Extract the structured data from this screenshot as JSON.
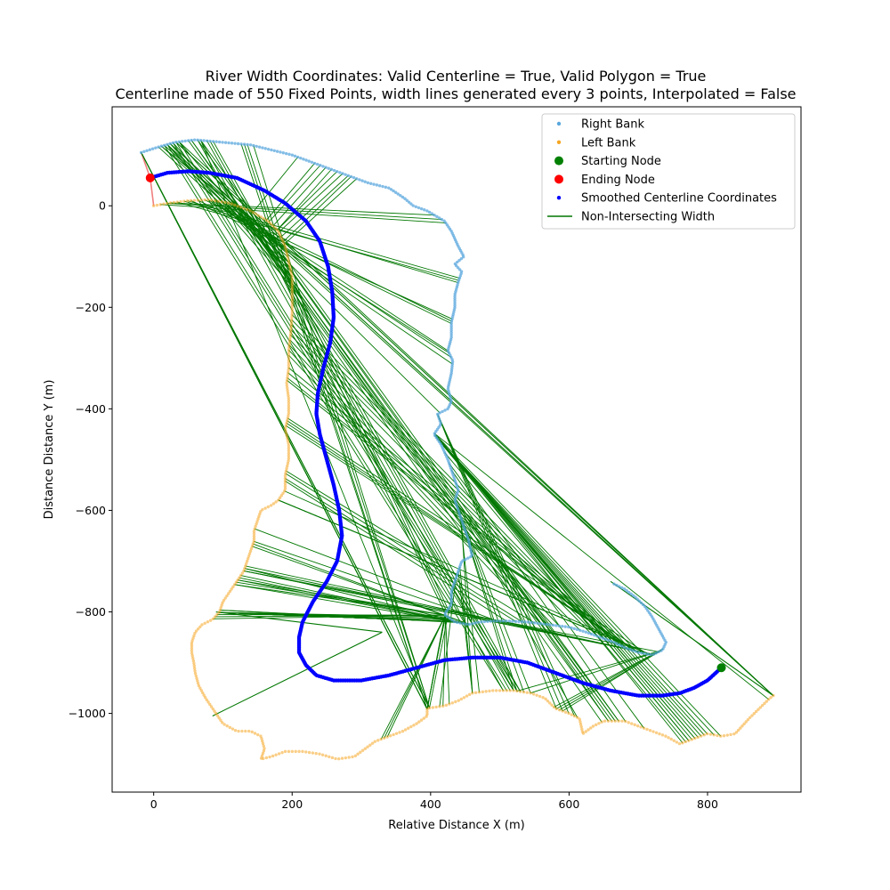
{
  "chart_data": {
    "type": "scatter",
    "title": "River Width Coordinates: Valid Centerline = True, Valid Polygon = True",
    "subtitle": "Centerline made of 550 Fixed Points, width lines generated every 3 points, Interpolated = False",
    "xlabel": "Relative Distance X (m)",
    "ylabel": "Distance Distance Y (m)",
    "xlim": [
      -60,
      935
    ],
    "ylim": [
      -1155,
      195
    ],
    "xticks": [
      0,
      200,
      400,
      600,
      800
    ],
    "yticks": [
      0,
      -200,
      -400,
      -600,
      -800,
      -1000
    ],
    "legend_position": "top-right",
    "colors": {
      "right_bank": "#5aa7dd",
      "left_bank": "#f5a623",
      "start": "#008000",
      "end": "#ff0000",
      "centerline": "#0000ff",
      "width": "#007700",
      "closing": "#f08080"
    },
    "legend": [
      {
        "label": "Right Bank",
        "kind": "small-dot",
        "color": "#5aa7dd"
      },
      {
        "label": "Left Bank",
        "kind": "small-dot",
        "color": "#f5a623"
      },
      {
        "label": "Starting Node",
        "kind": "big-dot",
        "color": "#008000"
      },
      {
        "label": "Ending Node",
        "kind": "big-dot",
        "color": "#ff0000"
      },
      {
        "label": "Smoothed Centerline Coordinates",
        "kind": "small-dot",
        "color": "#0000ff"
      },
      {
        "label": "Non-Intersecting Width",
        "kind": "line",
        "color": "#007700"
      }
    ],
    "right_bank": [
      [
        -18,
        105
      ],
      [
        5,
        115
      ],
      [
        30,
        125
      ],
      [
        60,
        130
      ],
      [
        100,
        125
      ],
      [
        140,
        120
      ],
      [
        170,
        110
      ],
      [
        200,
        100
      ],
      [
        230,
        85
      ],
      [
        260,
        70
      ],
      [
        290,
        55
      ],
      [
        310,
        45
      ],
      [
        340,
        35
      ],
      [
        362,
        15
      ],
      [
        375,
        0
      ],
      [
        395,
        -10
      ],
      [
        420,
        -30
      ],
      [
        430,
        -50
      ],
      [
        440,
        -80
      ],
      [
        448,
        -100
      ],
      [
        435,
        -115
      ],
      [
        445,
        -130
      ],
      [
        440,
        -150
      ],
      [
        435,
        -175
      ],
      [
        435,
        -200
      ],
      [
        430,
        -230
      ],
      [
        430,
        -260
      ],
      [
        425,
        -285
      ],
      [
        432,
        -305
      ],
      [
        430,
        -330
      ],
      [
        425,
        -360
      ],
      [
        430,
        -385
      ],
      [
        425,
        -400
      ],
      [
        410,
        -410
      ],
      [
        415,
        -430
      ],
      [
        405,
        -450
      ],
      [
        415,
        -470
      ],
      [
        425,
        -500
      ],
      [
        430,
        -520
      ],
      [
        435,
        -540
      ],
      [
        440,
        -560
      ],
      [
        435,
        -580
      ],
      [
        440,
        -600
      ],
      [
        445,
        -620
      ],
      [
        450,
        -640
      ],
      [
        455,
        -660
      ],
      [
        460,
        -690
      ],
      [
        445,
        -700
      ],
      [
        440,
        -720
      ],
      [
        435,
        -740
      ],
      [
        430,
        -760
      ],
      [
        430,
        -785
      ],
      [
        420,
        -805
      ],
      [
        435,
        -820
      ],
      [
        455,
        -825
      ],
      [
        470,
        -820
      ],
      [
        490,
        -818
      ],
      [
        510,
        -818
      ],
      [
        540,
        -820
      ],
      [
        570,
        -825
      ],
      [
        600,
        -830
      ],
      [
        625,
        -840
      ],
      [
        645,
        -850
      ],
      [
        665,
        -860
      ],
      [
        680,
        -870
      ],
      [
        700,
        -880
      ],
      [
        720,
        -885
      ],
      [
        735,
        -875
      ],
      [
        740,
        -860
      ],
      [
        730,
        -835
      ],
      [
        720,
        -810
      ],
      [
        710,
        -790
      ],
      [
        695,
        -770
      ],
      [
        680,
        -755
      ],
      [
        665,
        -745
      ]
    ],
    "left_bank": [
      [
        0,
        0
      ],
      [
        20,
        5
      ],
      [
        50,
        10
      ],
      [
        80,
        12
      ],
      [
        110,
        5
      ],
      [
        140,
        -10
      ],
      [
        165,
        -30
      ],
      [
        180,
        -50
      ],
      [
        190,
        -80
      ],
      [
        195,
        -110
      ],
      [
        200,
        -140
      ],
      [
        200,
        -180
      ],
      [
        200,
        -210
      ],
      [
        198,
        -250
      ],
      [
        195,
        -285
      ],
      [
        195,
        -320
      ],
      [
        192,
        -350
      ],
      [
        195,
        -380
      ],
      [
        195,
        -410
      ],
      [
        190,
        -440
      ],
      [
        195,
        -470
      ],
      [
        195,
        -500
      ],
      [
        190,
        -530
      ],
      [
        190,
        -560
      ],
      [
        180,
        -580
      ],
      [
        170,
        -590
      ],
      [
        155,
        -600
      ],
      [
        150,
        -620
      ],
      [
        145,
        -640
      ],
      [
        145,
        -660
      ],
      [
        140,
        -680
      ],
      [
        135,
        -700
      ],
      [
        130,
        -720
      ],
      [
        120,
        -740
      ],
      [
        110,
        -760
      ],
      [
        100,
        -780
      ],
      [
        95,
        -800
      ],
      [
        85,
        -815
      ],
      [
        70,
        -825
      ],
      [
        60,
        -840
      ],
      [
        55,
        -860
      ],
      [
        55,
        -880
      ],
      [
        58,
        -900
      ],
      [
        60,
        -920
      ],
      [
        65,
        -945
      ],
      [
        75,
        -970
      ],
      [
        85,
        -990
      ],
      [
        100,
        -1020
      ],
      [
        120,
        -1035
      ],
      [
        140,
        -1035
      ],
      [
        155,
        -1045
      ],
      [
        160,
        -1070
      ],
      [
        155,
        -1090
      ],
      [
        170,
        -1085
      ],
      [
        190,
        -1075
      ],
      [
        215,
        -1075
      ],
      [
        240,
        -1080
      ],
      [
        265,
        -1090
      ],
      [
        290,
        -1085
      ],
      [
        305,
        -1070
      ],
      [
        320,
        -1055
      ],
      [
        340,
        -1045
      ],
      [
        360,
        -1035
      ],
      [
        380,
        -1020
      ],
      [
        395,
        -1005
      ],
      [
        395,
        -990
      ],
      [
        420,
        -985
      ],
      [
        440,
        -975
      ],
      [
        460,
        -960
      ],
      [
        490,
        -955
      ],
      [
        520,
        -955
      ],
      [
        545,
        -960
      ],
      [
        565,
        -970
      ],
      [
        580,
        -990
      ],
      [
        600,
        -1000
      ],
      [
        615,
        -1010
      ],
      [
        620,
        -1040
      ],
      [
        635,
        -1025
      ],
      [
        650,
        -1015
      ],
      [
        680,
        -1015
      ],
      [
        700,
        -1025
      ],
      [
        720,
        -1035
      ],
      [
        740,
        -1045
      ],
      [
        760,
        -1060
      ],
      [
        780,
        -1050
      ],
      [
        800,
        -1040
      ],
      [
        820,
        -1045
      ],
      [
        840,
        -1040
      ],
      [
        860,
        -1010
      ],
      [
        875,
        -990
      ],
      [
        890,
        -970
      ],
      [
        895,
        -965
      ]
    ],
    "centerline": [
      [
        820,
        -910
      ],
      [
        800,
        -935
      ],
      [
        780,
        -950
      ],
      [
        760,
        -960
      ],
      [
        735,
        -965
      ],
      [
        700,
        -965
      ],
      [
        660,
        -955
      ],
      [
        620,
        -940
      ],
      [
        580,
        -920
      ],
      [
        540,
        -900
      ],
      [
        500,
        -890
      ],
      [
        460,
        -890
      ],
      [
        420,
        -895
      ],
      [
        380,
        -910
      ],
      [
        340,
        -925
      ],
      [
        300,
        -935
      ],
      [
        260,
        -935
      ],
      [
        235,
        -925
      ],
      [
        220,
        -905
      ],
      [
        210,
        -880
      ],
      [
        210,
        -850
      ],
      [
        215,
        -820
      ],
      [
        230,
        -780
      ],
      [
        250,
        -740
      ],
      [
        265,
        -700
      ],
      [
        272,
        -650
      ],
      [
        268,
        -600
      ],
      [
        260,
        -550
      ],
      [
        250,
        -500
      ],
      [
        240,
        -450
      ],
      [
        235,
        -410
      ],
      [
        237,
        -370
      ],
      [
        245,
        -320
      ],
      [
        255,
        -270
      ],
      [
        260,
        -220
      ],
      [
        258,
        -170
      ],
      [
        252,
        -120
      ],
      [
        240,
        -70
      ],
      [
        220,
        -30
      ],
      [
        190,
        5
      ],
      [
        160,
        30
      ],
      [
        120,
        55
      ],
      [
        80,
        65
      ],
      [
        50,
        68
      ],
      [
        20,
        65
      ],
      [
        -5,
        55
      ]
    ],
    "start_node": [
      820,
      -910
    ],
    "end_node": [
      -5,
      55
    ],
    "closing_line": [
      [
        -18,
        105
      ],
      [
        -5,
        55
      ],
      [
        0,
        0
      ]
    ],
    "outlier_width_lines": [
      {
        "from": [
          660,
          -740
        ],
        "to": [
          895,
          -965
        ]
      },
      {
        "from": [
          330,
          -840
        ],
        "to": [
          85,
          -1005
        ]
      },
      {
        "from": [
          90,
          -800
        ],
        "to": [
          330,
          -840
        ]
      }
    ]
  }
}
